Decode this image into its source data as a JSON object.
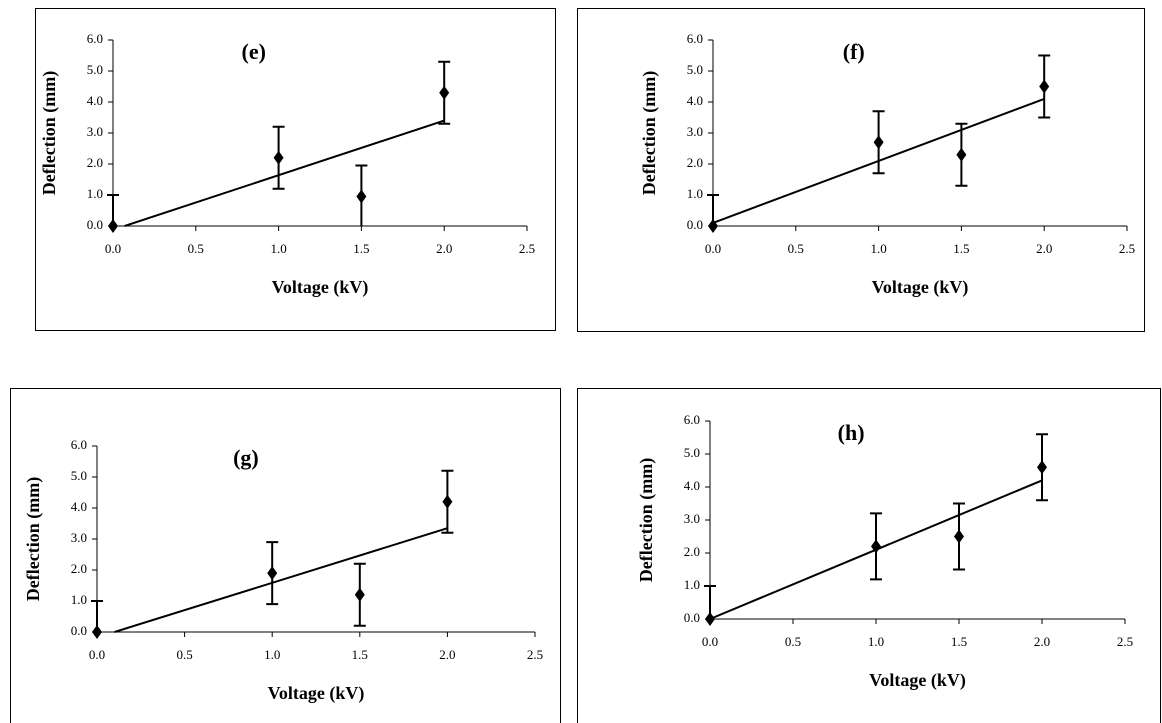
{
  "chart_data": [
    {
      "type": "scatter",
      "title": "(e)",
      "xlabel": "Voltage (kV)",
      "ylabel": "Deflection (mm)",
      "x": [
        0,
        1,
        1.5,
        2
      ],
      "y": [
        0,
        2.2,
        0.95,
        4.3
      ],
      "errors": [
        1,
        1,
        1,
        1
      ],
      "trend": {
        "x": [
          0.07,
          2
        ],
        "y": [
          0,
          3.4
        ]
      },
      "color": "#000000",
      "xlim": [
        0,
        2.5
      ],
      "ylim": [
        0,
        6
      ],
      "xticks": [
        {
          "value": 0,
          "label": "0.0"
        },
        {
          "value": 0.5,
          "label": "0.5"
        },
        {
          "value": 1,
          "label": "1.0"
        },
        {
          "value": 1.5,
          "label": "1.5"
        },
        {
          "value": 2,
          "label": "2.0"
        },
        {
          "value": 2.5,
          "label": "2.5"
        }
      ],
      "yticks": [
        {
          "value": 0,
          "label": "0.0"
        },
        {
          "value": 1,
          "label": "1.0"
        },
        {
          "value": 2,
          "label": "2.0"
        },
        {
          "value": 3,
          "label": "3.0"
        },
        {
          "value": 4,
          "label": "4.0"
        },
        {
          "value": 5,
          "label": "5.0"
        },
        {
          "value": 6,
          "label": "6.0"
        }
      ]
    },
    {
      "type": "scatter",
      "title": "(f)",
      "xlabel": "Voltage (kV)",
      "ylabel": "Deflection (mm)",
      "x": [
        0,
        1,
        1.5,
        2
      ],
      "y": [
        0,
        2.7,
        2.3,
        4.5
      ],
      "errors": [
        1,
        1,
        1,
        1
      ],
      "trend": {
        "x": [
          0,
          2
        ],
        "y": [
          0.1,
          4.1
        ]
      },
      "color": "#000000",
      "xlim": [
        0,
        2.5
      ],
      "ylim": [
        0,
        6
      ],
      "xticks": [
        {
          "value": 0,
          "label": "0.0"
        },
        {
          "value": 0.5,
          "label": "0.5"
        },
        {
          "value": 1,
          "label": "1.0"
        },
        {
          "value": 1.5,
          "label": "1.5"
        },
        {
          "value": 2,
          "label": "2.0"
        },
        {
          "value": 2.5,
          "label": "2.5"
        }
      ],
      "yticks": [
        {
          "value": 0,
          "label": "0.0"
        },
        {
          "value": 1,
          "label": "1.0"
        },
        {
          "value": 2,
          "label": "2.0"
        },
        {
          "value": 3,
          "label": "3.0"
        },
        {
          "value": 4,
          "label": "4.0"
        },
        {
          "value": 5,
          "label": "5.0"
        },
        {
          "value": 6,
          "label": "6.0"
        }
      ]
    },
    {
      "type": "scatter",
      "title": "(g)",
      "xlabel": "Voltage (kV)",
      "ylabel": "Deflection (mm)",
      "x": [
        0,
        1,
        1.5,
        2
      ],
      "y": [
        0,
        1.9,
        1.2,
        4.2
      ],
      "errors": [
        1,
        1,
        1,
        1
      ],
      "trend": {
        "x": [
          0.1,
          2
        ],
        "y": [
          0,
          3.35
        ]
      },
      "color": "#000000",
      "xlim": [
        0,
        2.5
      ],
      "ylim": [
        0,
        6
      ],
      "xticks": [
        {
          "value": 0,
          "label": "0.0"
        },
        {
          "value": 0.5,
          "label": "0.5"
        },
        {
          "value": 1,
          "label": "1.0"
        },
        {
          "value": 1.5,
          "label": "1.5"
        },
        {
          "value": 2,
          "label": "2.0"
        },
        {
          "value": 2.5,
          "label": "2.5"
        }
      ],
      "yticks": [
        {
          "value": 0,
          "label": "0.0"
        },
        {
          "value": 1,
          "label": "1.0"
        },
        {
          "value": 2,
          "label": "2.0"
        },
        {
          "value": 3,
          "label": "3.0"
        },
        {
          "value": 4,
          "label": "4.0"
        },
        {
          "value": 5,
          "label": "5.0"
        },
        {
          "value": 6,
          "label": "6.0"
        }
      ]
    },
    {
      "type": "scatter",
      "title": "(h)",
      "xlabel": "Voltage (kV)",
      "ylabel": "Deflection (mm)",
      "x": [
        0,
        1,
        1.5,
        2
      ],
      "y": [
        0,
        2.2,
        2.5,
        4.6
      ],
      "errors": [
        1,
        1,
        1,
        1
      ],
      "trend": {
        "x": [
          0,
          2
        ],
        "y": [
          0,
          4.2
        ]
      },
      "color": "#000000",
      "xlim": [
        0,
        2.5
      ],
      "ylim": [
        0,
        6
      ],
      "xticks": [
        {
          "value": 0,
          "label": "0.0"
        },
        {
          "value": 0.5,
          "label": "0.5"
        },
        {
          "value": 1,
          "label": "1.0"
        },
        {
          "value": 1.5,
          "label": "1.5"
        },
        {
          "value": 2,
          "label": "2.0"
        },
        {
          "value": 2.5,
          "label": "2.5"
        }
      ],
      "yticks": [
        {
          "value": 0,
          "label": "0.0"
        },
        {
          "value": 1,
          "label": "1.0"
        },
        {
          "value": 2,
          "label": "2.0"
        },
        {
          "value": 3,
          "label": "3.0"
        },
        {
          "value": 4,
          "label": "4.0"
        },
        {
          "value": 5,
          "label": "5.0"
        },
        {
          "value": 6,
          "label": "6.0"
        }
      ]
    }
  ]
}
